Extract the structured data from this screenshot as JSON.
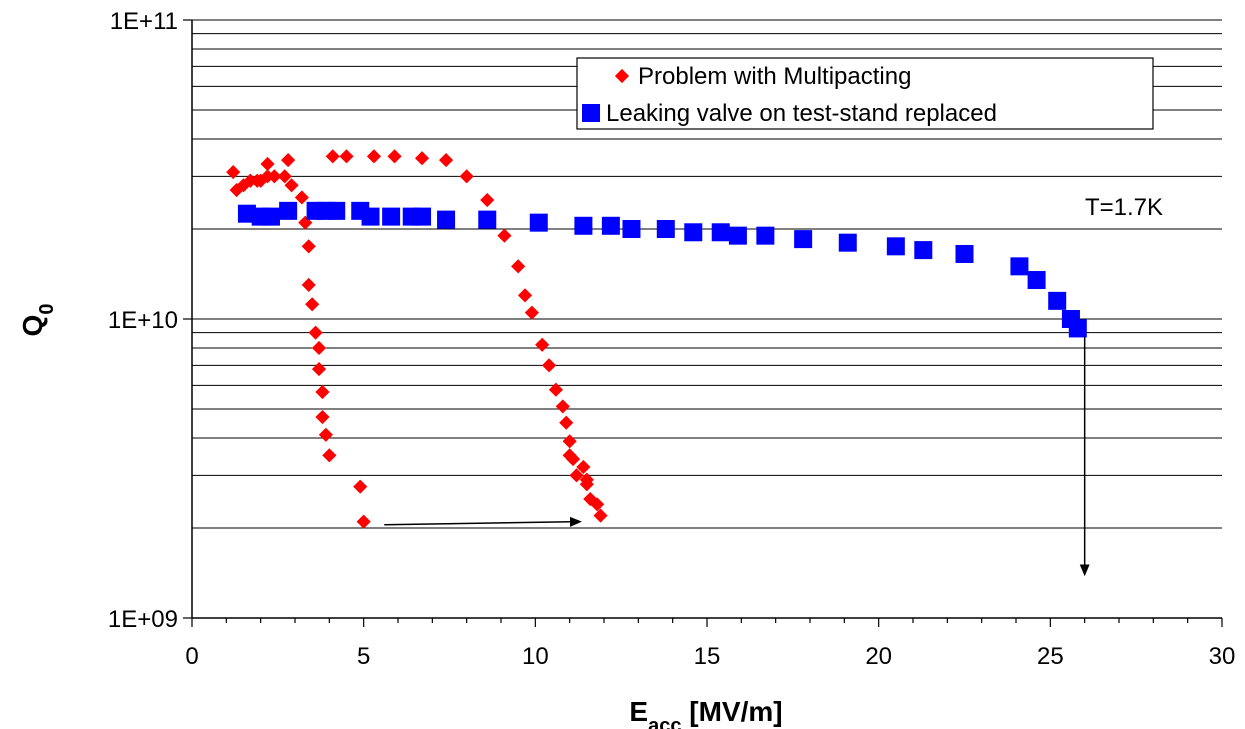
{
  "chart_data": {
    "type": "scatter",
    "xlabel": "E",
    "xlabel_sub": "acc",
    "xlabel_unit": " [MV/m]",
    "ylabel": "Q",
    "ylabel_sub": "0",
    "xlim": [
      0,
      30
    ],
    "ylim": [
      1000000000.0,
      100000000000.0
    ],
    "y_scale": "log",
    "x_ticks": [
      0,
      5,
      10,
      15,
      20,
      25,
      30
    ],
    "x_tick_labels": [
      "0",
      "5",
      "10",
      "15",
      "20",
      "25",
      "30"
    ],
    "y_ticks": [
      1000000000.0,
      10000000000.0,
      100000000000.0
    ],
    "y_tick_labels": [
      "1E+09",
      "1E+10",
      "1E+11"
    ],
    "grid": "horizontal",
    "legend_position": "top-right",
    "annotation": "T=1.7K",
    "series": [
      {
        "name": "Problem with Multipacting",
        "marker": "diamond",
        "color": "#ff0000",
        "x": [
          1.2,
          1.3,
          1.5,
          1.7,
          1.9,
          2.0,
          2.2,
          2.2,
          2.4,
          2.7,
          2.8,
          2.9,
          3.2,
          3.3,
          3.4,
          3.4,
          3.5,
          3.6,
          3.7,
          3.7,
          3.8,
          3.8,
          3.9,
          4.0,
          4.1,
          4.5,
          4.9,
          5.0,
          5.3,
          5.9,
          6.7,
          7.4,
          8.0,
          8.6,
          9.1,
          9.5,
          9.7,
          9.9,
          10.2,
          10.4,
          10.6,
          10.8,
          10.9,
          11.0,
          11.1,
          11.2,
          11.4,
          11.5,
          11.6,
          11.8,
          11.9,
          11.5,
          11.0
        ],
        "y": [
          31000000000.0,
          27000000000.0,
          28000000000.0,
          29000000000.0,
          29000000000.0,
          29000000000.0,
          30000000000.0,
          33000000000.0,
          30000000000.0,
          30000000000.0,
          34000000000.0,
          28000000000.0,
          25500000000.0,
          21000000000.0,
          17500000000.0,
          13000000000.0,
          11200000000.0,
          9000000000.0,
          8000000000.0,
          6800000000.0,
          5700000000.0,
          4700000000.0,
          4100000000.0,
          3500000000.0,
          35000000000.0,
          35000000000.0,
          2750000000.0,
          2100000000.0,
          35000000000.0,
          35000000000.0,
          34500000000.0,
          34000000000.0,
          30000000000.0,
          25000000000.0,
          19000000000.0,
          15000000000.0,
          12000000000.0,
          10500000000.0,
          8200000000.0,
          7000000000.0,
          5800000000.0,
          5100000000.0,
          4500000000.0,
          3900000000.0,
          3400000000.0,
          3000000000.0,
          3200000000.0,
          2900000000.0,
          2500000000.0,
          2400000000.0,
          2200000000.0,
          2800000000.0,
          3500000000.0
        ]
      },
      {
        "name": "Leaking valve on test-stand replaced",
        "marker": "square",
        "color": "#0000ff",
        "x": [
          1.6,
          2.0,
          2.3,
          2.8,
          3.6,
          3.9,
          4.2,
          4.9,
          5.2,
          5.8,
          6.4,
          6.7,
          7.4,
          8.6,
          10.1,
          11.4,
          12.2,
          12.8,
          13.8,
          14.6,
          15.4,
          15.9,
          16.7,
          17.8,
          19.1,
          20.5,
          21.3,
          22.5,
          24.1,
          24.6,
          25.2,
          25.6,
          25.8
        ],
        "y": [
          22500000000.0,
          22000000000.0,
          22000000000.0,
          23000000000.0,
          23000000000.0,
          23000000000.0,
          23000000000.0,
          23000000000.0,
          22000000000.0,
          22000000000.0,
          22000000000.0,
          22000000000.0,
          21500000000.0,
          21500000000.0,
          21000000000.0,
          20500000000.0,
          20500000000.0,
          20000000000.0,
          20000000000.0,
          19500000000.0,
          19500000000.0,
          19000000000.0,
          19000000000.0,
          18500000000.0,
          18000000000.0,
          17500000000.0,
          17000000000.0,
          16500000000.0,
          15000000000.0,
          13500000000.0,
          11500000000.0,
          10000000000.0,
          9300000000.0
        ]
      }
    ],
    "arrows": [
      {
        "from": [
          5.6,
          2050000000.0
        ],
        "to": [
          11.3,
          2100000000.0
        ]
      },
      {
        "from": [
          26.0,
          8700000000.0
        ],
        "to": [
          26.0,
          1400000000.0
        ]
      }
    ]
  }
}
